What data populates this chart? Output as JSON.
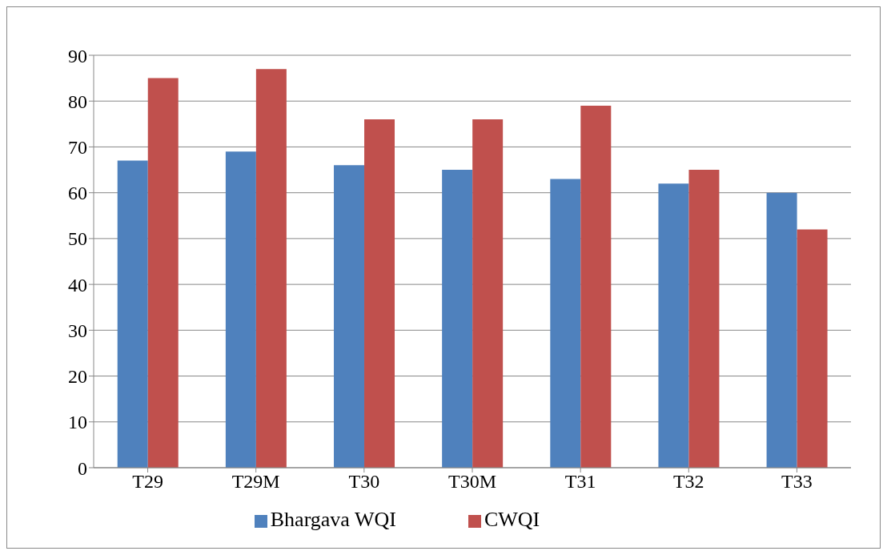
{
  "chart_data": {
    "type": "bar",
    "categories": [
      "T29",
      "T29M",
      "T30",
      "T30M",
      "T31",
      "T32",
      "T33"
    ],
    "series": [
      {
        "name": "Bhargava WQI",
        "color": "#4f81bd",
        "values": [
          67,
          69,
          66,
          65,
          63,
          62,
          60
        ]
      },
      {
        "name": "CWQI",
        "color": "#c0504d",
        "values": [
          85,
          87,
          76,
          76,
          79,
          65,
          52
        ]
      }
    ],
    "ylim": [
      0,
      90
    ],
    "yticks": [
      0,
      10,
      20,
      30,
      40,
      50,
      60,
      70,
      80,
      90
    ],
    "grid": "y",
    "legend": "bottom"
  }
}
